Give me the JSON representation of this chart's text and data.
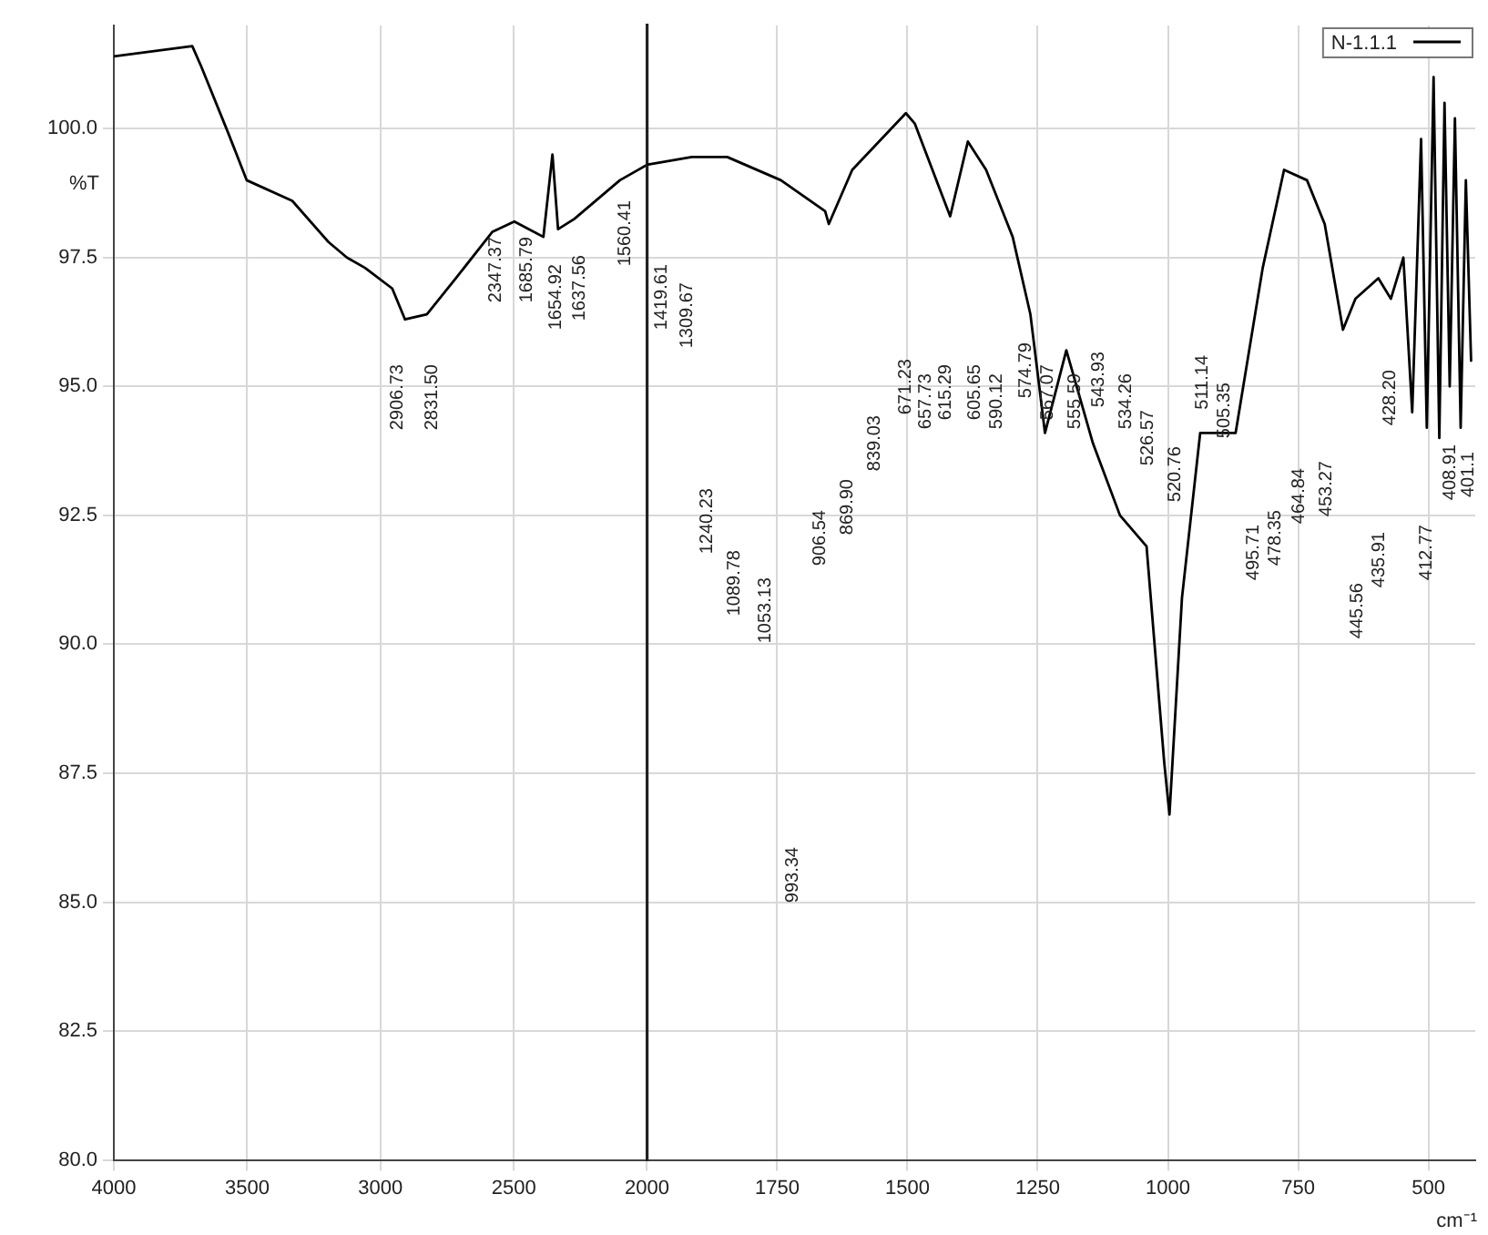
{
  "chart_data": [
    {
      "type": "line",
      "ylabel": "%T",
      "xlim": [
        4000,
        2000
      ],
      "xticks": [
        4000,
        3500,
        3000,
        2500
      ],
      "ylim": [
        80,
        102
      ],
      "yticks": [
        {
          "value": 80,
          "label": "80.0"
        },
        {
          "value": 82.5,
          "label": "82.5"
        },
        {
          "value": 85,
          "label": "85.0"
        },
        {
          "value": 87.5,
          "label": "87.5"
        },
        {
          "value": 90,
          "label": "90.0"
        },
        {
          "value": 92.5,
          "label": "92.5"
        },
        {
          "value": 95,
          "label": "95.0"
        },
        {
          "value": 97.5,
          "label": "97.5"
        },
        {
          "value": 100,
          "label": "100.0"
        }
      ],
      "grid": true,
      "marker": "none",
      "line_style": "solid",
      "series": [
        {
          "color": "#000000",
          "x": [
            4000,
            3706,
            3672,
            3570,
            3502,
            3331,
            3195,
            3126,
            3058,
            2956,
            2908,
            2826,
            2717,
            2580,
            2498,
            2389,
            2355,
            2334,
            2273,
            2102,
            2000
          ],
          "values": [
            101.4,
            101.6,
            101.2,
            99.9,
            99.0,
            98.6,
            97.8,
            97.5,
            97.3,
            96.9,
            96.3,
            96.4,
            97.1,
            98.0,
            98.2,
            97.9,
            99.5,
            98.05,
            98.25,
            99.0,
            99.3
          ]
        }
      ],
      "annotations": [
        "2906.73",
        "2831.50",
        "2347.37",
        "1685.79",
        "1654.92",
        "1637.56",
        "1560.41"
      ]
    },
    {
      "type": "line",
      "xlabel": "cm⁻¹",
      "xlim": [
        2000,
        410
      ],
      "xticks": [
        2000,
        1750,
        1500,
        1250,
        1000,
        750,
        500
      ],
      "ylim": [
        80,
        102
      ],
      "tick_labels": "x",
      "grid": true,
      "legend": "top right",
      "marker": "none",
      "line_style": "solid",
      "series": [
        {
          "name": "N-1.1.1",
          "color": "#000000",
          "x": [
            2000,
            1914,
            1846,
            1743,
            1658,
            1651,
            1606,
            1503,
            1486,
            1418,
            1384,
            1349,
            1298,
            1264,
            1236,
            1195,
            1144,
            1092,
            1041,
            1007,
            997,
            973,
            938,
            870,
            818,
            777,
            733,
            699,
            664,
            640,
            596,
            572,
            548,
            531,
            514,
            503,
            490,
            479,
            469,
            459,
            449,
            438,
            428,
            418
          ],
          "values": [
            99.3,
            99.45,
            99.45,
            99.0,
            98.4,
            98.15,
            99.2,
            100.3,
            100.1,
            98.3,
            99.75,
            99.2,
            97.9,
            96.4,
            94.1,
            95.7,
            93.9,
            92.5,
            91.9,
            87.7,
            86.7,
            90.9,
            94.1,
            94.1,
            97.3,
            99.2,
            99.0,
            98.15,
            96.1,
            96.7,
            97.1,
            96.7,
            97.5,
            94.5,
            99.8,
            94.2,
            101.0,
            94.0,
            100.5,
            95.0,
            100.2,
            94.2,
            99.0,
            95.5
          ]
        }
      ],
      "annotations": [
        "1419.61",
        "1309.67",
        "671.23",
        "657.73",
        "615.29",
        "605.65",
        "590.12",
        "574.79",
        "567.07",
        "555.59",
        "543.93",
        "534.26",
        "526.57",
        "520.76",
        "511.14",
        "505.35",
        "1240.23",
        "1089.78",
        "1053.13",
        "906.54",
        "869.90",
        "839.03",
        "993.34",
        "495.71",
        "478.35",
        "464.84",
        "453.27",
        "428.20",
        "445.56",
        "435.91",
        "412.77",
        "408.91",
        "401.1"
      ]
    }
  ]
}
